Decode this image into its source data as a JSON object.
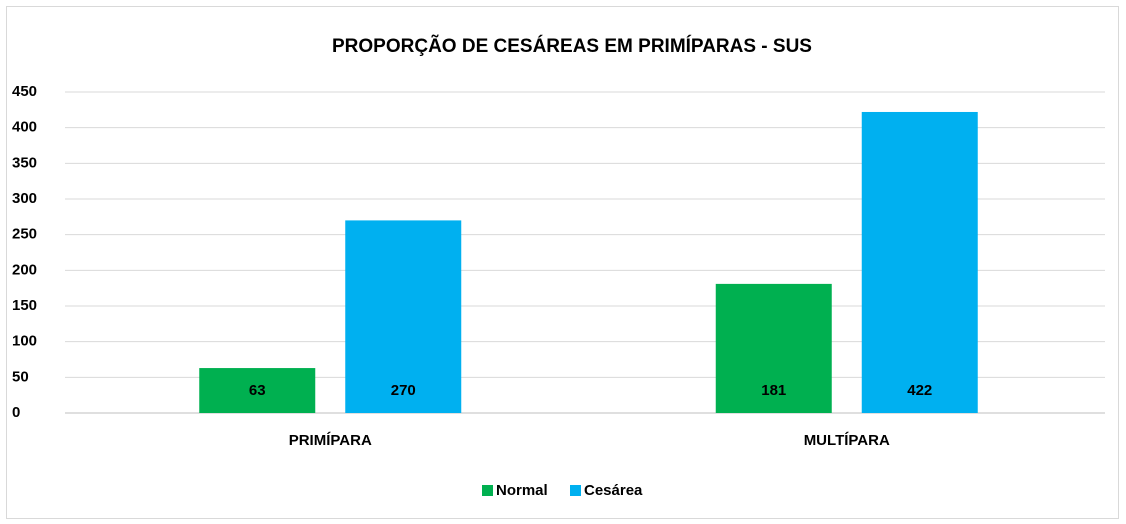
{
  "chart_data": {
    "type": "bar",
    "title": "PROPORÇÃO DE CESÁREAS EM PRIMÍPARAS - SUS",
    "categories": [
      "PRIMÍPARA",
      "MULTÍPARA"
    ],
    "series": [
      {
        "name": "Normal",
        "color": "#00b050",
        "values": [
          63,
          181
        ]
      },
      {
        "name": "Cesárea",
        "color": "#00b0f0",
        "values": [
          270,
          422
        ]
      }
    ],
    "ylim": [
      0,
      450
    ],
    "yticks": [
      0,
      50,
      100,
      150,
      200,
      250,
      300,
      350,
      400,
      450
    ],
    "grid": true,
    "legend": "bottom"
  }
}
